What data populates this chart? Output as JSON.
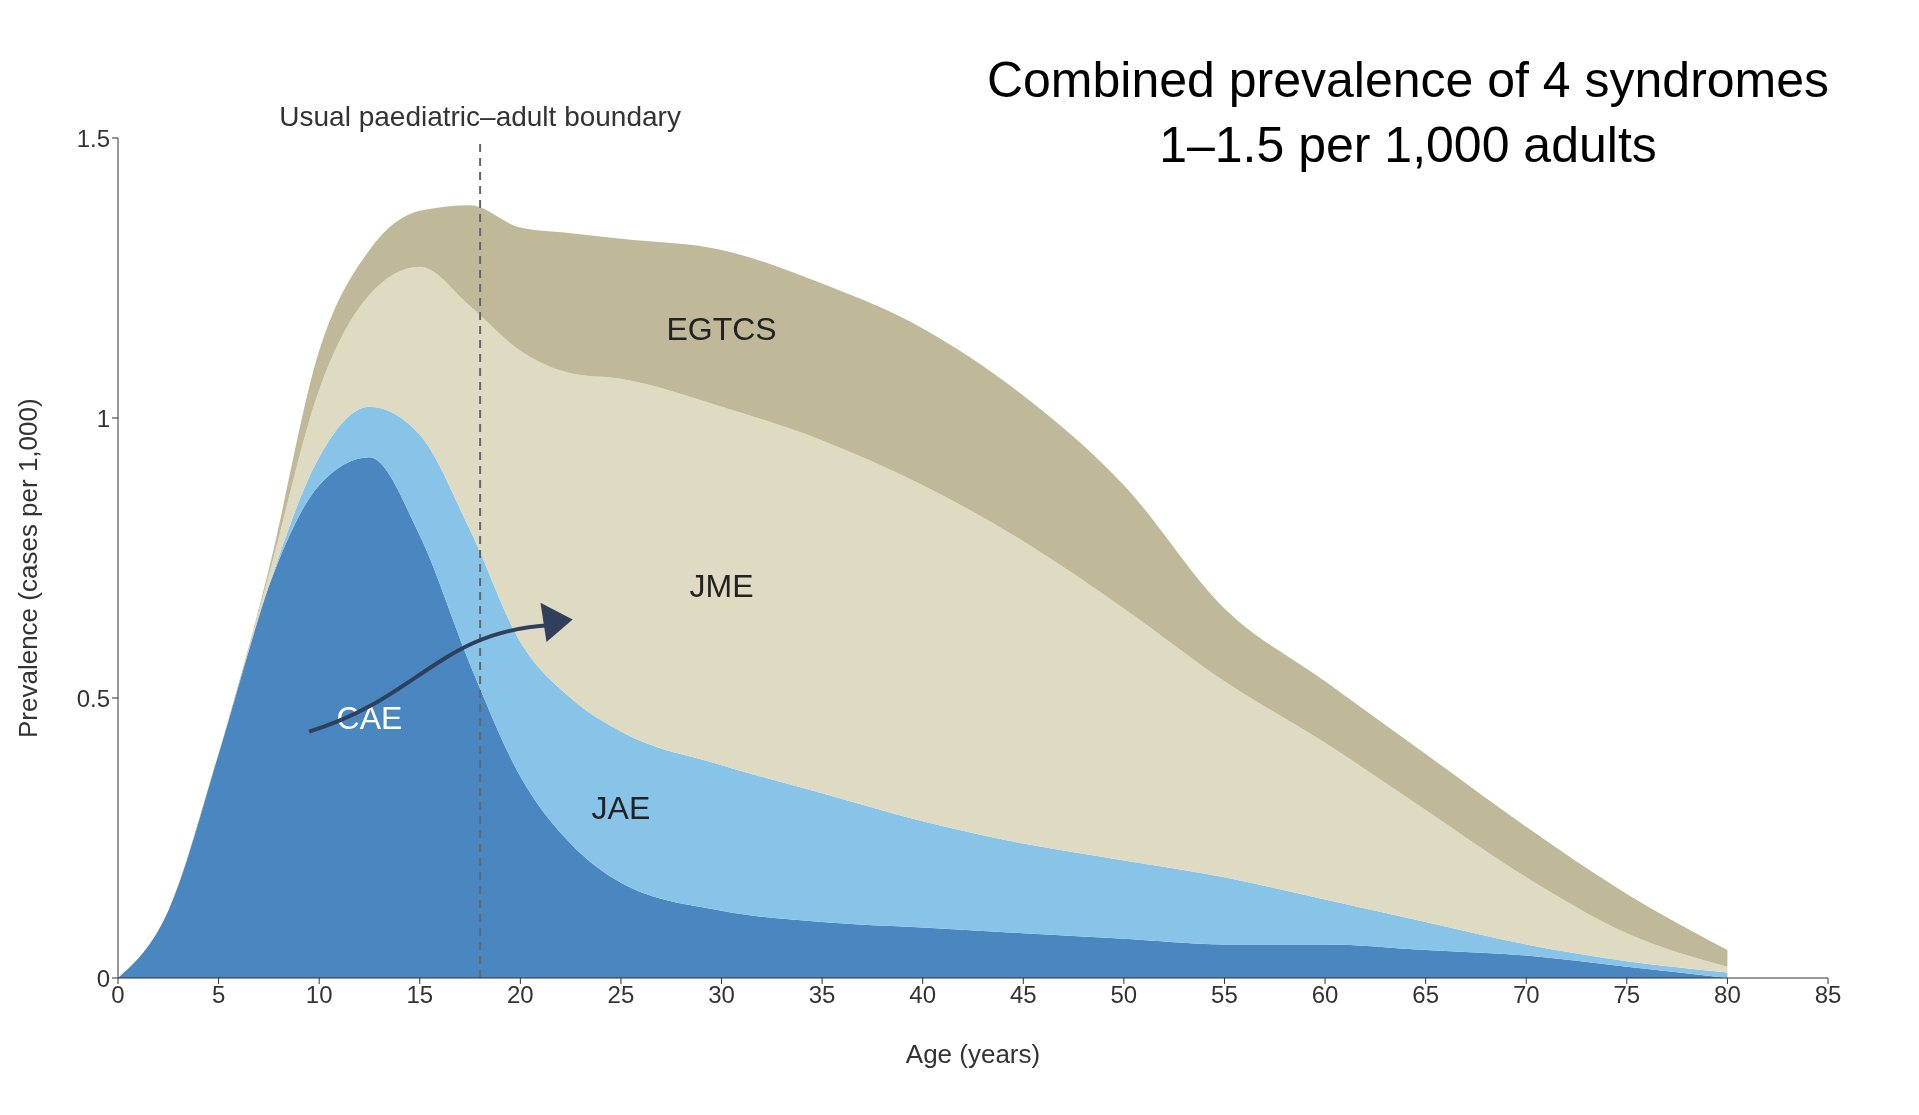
{
  "chart_data": {
    "type": "area",
    "title": "Combined prevalence of 4 syndromes",
    "subtitle": "1–1.5 per 1,000 adults",
    "xlabel": "Age (years)",
    "ylabel": "Prevalence (cases per 1,000)",
    "x": [
      0,
      2.5,
      5,
      7.5,
      10,
      12.5,
      15,
      17.5,
      20,
      22.5,
      25,
      30,
      35,
      40,
      45,
      50,
      55,
      60,
      65,
      70,
      75,
      80
    ],
    "stacked": true,
    "series": [
      {
        "name": "CAE",
        "color": "#4a86c0",
        "values": [
          0,
          0.12,
          0.4,
          0.7,
          0.88,
          0.93,
          0.79,
          0.56,
          0.36,
          0.24,
          0.17,
          0.12,
          0.1,
          0.09,
          0.08,
          0.07,
          0.06,
          0.06,
          0.05,
          0.04,
          0.02,
          0
        ]
      },
      {
        "name": "JAE",
        "color": "#88c3e8",
        "values": [
          0,
          0,
          0,
          0,
          0.05,
          0.09,
          0.18,
          0.24,
          0.24,
          0.26,
          0.27,
          0.26,
          0.23,
          0.19,
          0.16,
          0.14,
          0.12,
          0.08,
          0.05,
          0.02,
          0.01,
          0.01
        ]
      },
      {
        "name": "JME",
        "color": "#dedbc2",
        "values": [
          0,
          0,
          0,
          0.02,
          0.12,
          0.2,
          0.3,
          0.4,
          0.52,
          0.58,
          0.63,
          0.64,
          0.63,
          0.6,
          0.54,
          0.45,
          0.35,
          0.28,
          0.2,
          0.12,
          0.05,
          0.01
        ]
      },
      {
        "name": "EGTCS",
        "color": "#bfb999",
        "values": [
          0,
          0,
          0,
          0.01,
          0.07,
          0.08,
          0.1,
          0.18,
          0.22,
          0.25,
          0.25,
          0.28,
          0.28,
          0.28,
          0.26,
          0.22,
          0.13,
          0.11,
          0.1,
          0.09,
          0.07,
          0.03
        ]
      }
    ],
    "xlim": [
      0,
      85
    ],
    "xticks": [
      0,
      5,
      10,
      15,
      20,
      25,
      30,
      35,
      40,
      45,
      50,
      55,
      60,
      65,
      70,
      75,
      80,
      85
    ],
    "ylim": [
      0,
      1.5
    ],
    "yticks": [
      0,
      0.5,
      1,
      1.5
    ],
    "ref_lines": [
      {
        "axis": "x",
        "value": 18,
        "label": "Usual paediatric–adult boundary",
        "color": "#666666",
        "line_style": "dashed"
      }
    ],
    "grid": false,
    "legend": false
  }
}
